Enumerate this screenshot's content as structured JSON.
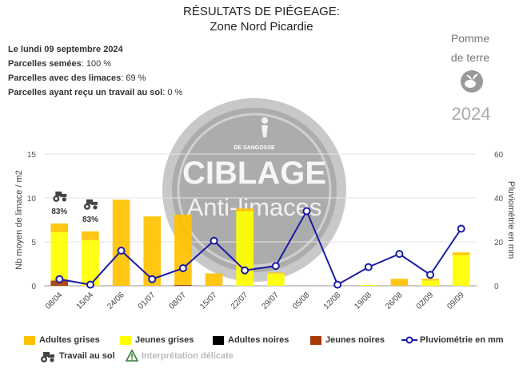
{
  "header": {
    "title": "RÉSULTATS DE PIÉGEAGE:",
    "subtitle": "Zone Nord Picardie"
  },
  "info": {
    "date": "Le lundi 09 septembre 2024",
    "sown_label": "Parcelles semées",
    "sown_value": ": 100 %",
    "slugs_label": "Parcelles avec des limaces",
    "slugs_value": ": 69 %",
    "worked_label": "Parcelles ayant reçu un travail au sol",
    "worked_value": ": 0 %"
  },
  "crop": {
    "line1": "Pomme",
    "line2": "de terre",
    "year": "2024",
    "icon": "potato-icon"
  },
  "watermark": {
    "brand": "DE SANGOSSE",
    "title": "CIBLAGE",
    "subtitle": "Anti-limaces"
  },
  "colors": {
    "adultes_grises": "#ffc200",
    "jeunes_grises": "#ffff00",
    "adultes_noires": "#000000",
    "jeunes_noires": "#a63a00",
    "pluvio": "#1a1aa6"
  },
  "chart_data": {
    "type": "bar",
    "stacked": true,
    "categories": [
      "08/04",
      "15/04",
      "24/06",
      "01/07",
      "08/07",
      "15/07",
      "22/07",
      "29/07",
      "05/08",
      "12/08",
      "19/08",
      "26/08",
      "02/09",
      "09/09"
    ],
    "ylabel": "Nb moyen de limace / m2",
    "y2label": "Pluviométrie en mm",
    "ylim": [
      0,
      15
    ],
    "yticks": [
      0,
      5,
      10,
      15
    ],
    "y2lim": [
      0,
      60
    ],
    "y2ticks": [
      0,
      20,
      40,
      60
    ],
    "series": [
      {
        "name": "Adultes grises",
        "values": [
          1.0,
          1.0,
          9.8,
          7.9,
          8.0,
          1.4,
          0.3,
          0.1,
          0,
          0,
          0,
          0.8,
          0.2,
          0.3
        ]
      },
      {
        "name": "Jeunes grises",
        "values": [
          5.5,
          5.2,
          0,
          0,
          0,
          0,
          8.5,
          1.4,
          0,
          0,
          0.1,
          0,
          0.6,
          3.5
        ]
      },
      {
        "name": "Adultes noires",
        "values": [
          0,
          0,
          0,
          0,
          0,
          0,
          0,
          0,
          0,
          0,
          0,
          0,
          0,
          0
        ]
      },
      {
        "name": "Jeunes noires",
        "values": [
          0.6,
          0,
          0,
          0,
          0.1,
          0,
          0,
          0,
          0,
          0,
          0,
          0,
          0,
          0
        ]
      }
    ],
    "line": {
      "name": "Pluviométrie en mm",
      "values": [
        3,
        0.5,
        16,
        3,
        8,
        20.5,
        7,
        9,
        34,
        0.5,
        8.5,
        14.5,
        5,
        26
      ]
    },
    "tractor_annotations": [
      {
        "category": "08/04",
        "label": "83%"
      },
      {
        "category": "15/04",
        "label": "83%"
      }
    ],
    "legend": [
      {
        "label": "Adultes grises",
        "kind": "bar",
        "color": "#ffc200"
      },
      {
        "label": "Jeunes grises",
        "kind": "bar",
        "color": "#ffff00"
      },
      {
        "label": "Adultes noires",
        "kind": "bar",
        "color": "#000000"
      },
      {
        "label": "Jeunes noires",
        "kind": "bar",
        "color": "#a63a00"
      },
      {
        "label": "Pluviométrie en mm",
        "kind": "line",
        "color": "#1a1aa6"
      },
      {
        "label": "Travail au sol",
        "kind": "tractor"
      },
      {
        "label": "Interprétation délicate",
        "kind": "warning"
      }
    ]
  }
}
